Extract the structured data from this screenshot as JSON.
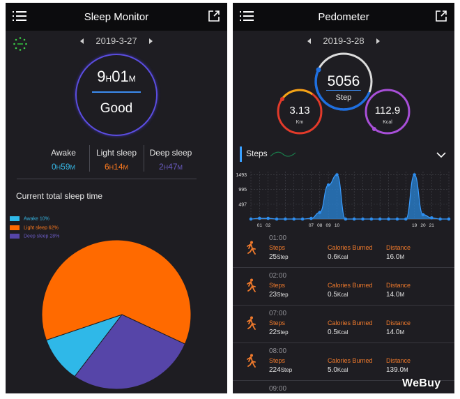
{
  "sleep": {
    "title": "Sleep Monitor",
    "date": "2019-3-27",
    "total": {
      "hours": "9",
      "h_unit": "H",
      "minutes": "01",
      "m_unit": "M"
    },
    "quality": "Good",
    "stats": [
      {
        "label": "Awake",
        "h": "0",
        "m": "59",
        "color": "#36b6e4"
      },
      {
        "label": "Light sleep",
        "h": "6",
        "m": "14",
        "color": "#ff7a1e"
      },
      {
        "label": "Deep sleep",
        "h": "2",
        "m": "47",
        "color": "#6a5bc2"
      }
    ],
    "units": {
      "h": "H",
      "m": "M"
    },
    "chart_title": "Current total sleep time",
    "colors": {
      "awake": "#2fb8e8",
      "light": "#ff6a00",
      "deep": "#5645a8",
      "ring": "#5b4de0"
    }
  },
  "chart_data": [
    {
      "type": "pie",
      "categories": [
        "Awake",
        "Light sleep",
        "Deep sleep"
      ],
      "legend": [
        "Awake 10%",
        "Light sleep 62%",
        "Deep sleep 28%"
      ],
      "values": [
        10,
        62,
        28
      ],
      "colors": [
        "#2fb8e8",
        "#ff6a00",
        "#5645a8"
      ],
      "legend_position": "top-left"
    },
    {
      "type": "area",
      "title": "Steps",
      "yticks": [
        497,
        995,
        1493
      ],
      "ylim": [
        0,
        1600
      ],
      "xticks": [
        "01",
        "02",
        "07",
        "08",
        "09",
        "10",
        "19",
        "20",
        "21"
      ],
      "x": [
        0,
        1,
        2,
        3,
        4,
        5,
        6,
        7,
        8,
        9,
        10,
        11,
        12,
        13,
        14,
        15,
        16,
        17,
        18,
        19,
        20,
        21,
        22,
        23
      ],
      "values": [
        0,
        25,
        23,
        0,
        0,
        0,
        0,
        22,
        224,
        1150,
        1493,
        0,
        0,
        0,
        0,
        0,
        0,
        0,
        0,
        1493,
        150,
        40,
        0,
        0
      ],
      "color": "#2a86d8",
      "grid": true
    }
  ],
  "pedometer": {
    "title": "Pedometer",
    "date": "2019-3-28",
    "steps": {
      "value": "5056",
      "label": "Step"
    },
    "distance": {
      "value": "3.13",
      "unit": "Km"
    },
    "calories": {
      "value": "112.9",
      "unit": "Kcal"
    },
    "chart_label": "Steps",
    "rows": [
      {
        "hour": "01:00",
        "steps_label": "Steps",
        "steps": "25",
        "steps_unit": "Step",
        "cal_label": "Calories Burned",
        "cal": "0.6",
        "cal_unit": "Kcal",
        "dist_label": "Distance",
        "dist": "16.0",
        "dist_unit": "M"
      },
      {
        "hour": "02:00",
        "steps_label": "Steps",
        "steps": "23",
        "steps_unit": "Step",
        "cal_label": "Calories Burned",
        "cal": "0.5",
        "cal_unit": "Kcal",
        "dist_label": "Distance",
        "dist": "14.0",
        "dist_unit": "M"
      },
      {
        "hour": "07:00",
        "steps_label": "Steps",
        "steps": "22",
        "steps_unit": "Step",
        "cal_label": "Calories Burned",
        "cal": "0.5",
        "cal_unit": "Kcal",
        "dist_label": "Distance",
        "dist": "14.0",
        "dist_unit": "M"
      },
      {
        "hour": "08:00",
        "steps_label": "Steps",
        "steps": "224",
        "steps_unit": "Step",
        "cal_label": "Calories Burned",
        "cal": "5.0",
        "cal_unit": "Kcal",
        "dist_label": "Distance",
        "dist": "139.0",
        "dist_unit": "M"
      }
    ],
    "next_hour": "09:00"
  },
  "watermark": "WeBuy",
  "icons": {
    "menu": "menu-icon",
    "share": "share-icon",
    "loading": "loading-icon",
    "walker": "walking-person-icon",
    "chevron": "chevron-down-icon"
  }
}
